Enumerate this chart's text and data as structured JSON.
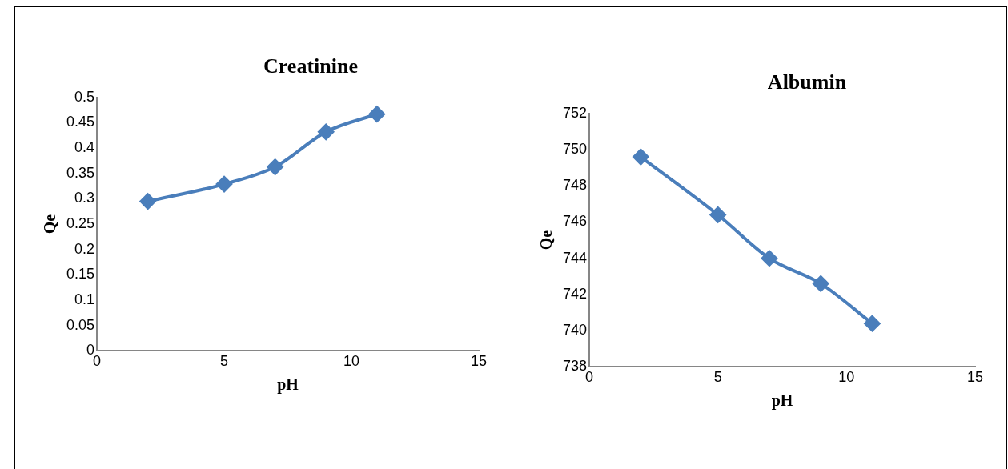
{
  "chart_data": [
    {
      "type": "line",
      "title": "Creatinine",
      "xlabel": "pH",
      "ylabel": "Qe",
      "x": [
        2,
        5,
        7,
        9,
        11
      ],
      "series": [
        {
          "color": "#4a7ebb",
          "values": [
            0.295,
            0.329,
            0.363,
            0.432,
            0.467
          ]
        }
      ],
      "xlim": [
        0,
        15
      ],
      "xticks": [
        0,
        5,
        10,
        15
      ],
      "ylim": [
        0,
        0.5
      ],
      "yticks": [
        0,
        0.05,
        0.1,
        0.15,
        0.2,
        0.25,
        0.3,
        0.35,
        0.4,
        0.45,
        0.5
      ],
      "grid": false,
      "legend": false,
      "marker": "diamond",
      "line_style": "solid"
    },
    {
      "type": "line",
      "title": "Albumin",
      "xlabel": "pH",
      "ylabel": "Qe",
      "x": [
        2,
        5,
        7,
        9,
        11
      ],
      "series": [
        {
          "color": "#4a7ebb",
          "values": [
            749.6,
            746.4,
            744.0,
            742.6,
            740.4
          ]
        }
      ],
      "xlim": [
        0,
        15
      ],
      "xticks": [
        0,
        5,
        10,
        15
      ],
      "ylim": [
        738,
        752
      ],
      "yticks": [
        738,
        740,
        742,
        744,
        746,
        748,
        750,
        752
      ],
      "grid": false,
      "legend": false,
      "marker": "diamond",
      "line_style": "solid"
    }
  ]
}
